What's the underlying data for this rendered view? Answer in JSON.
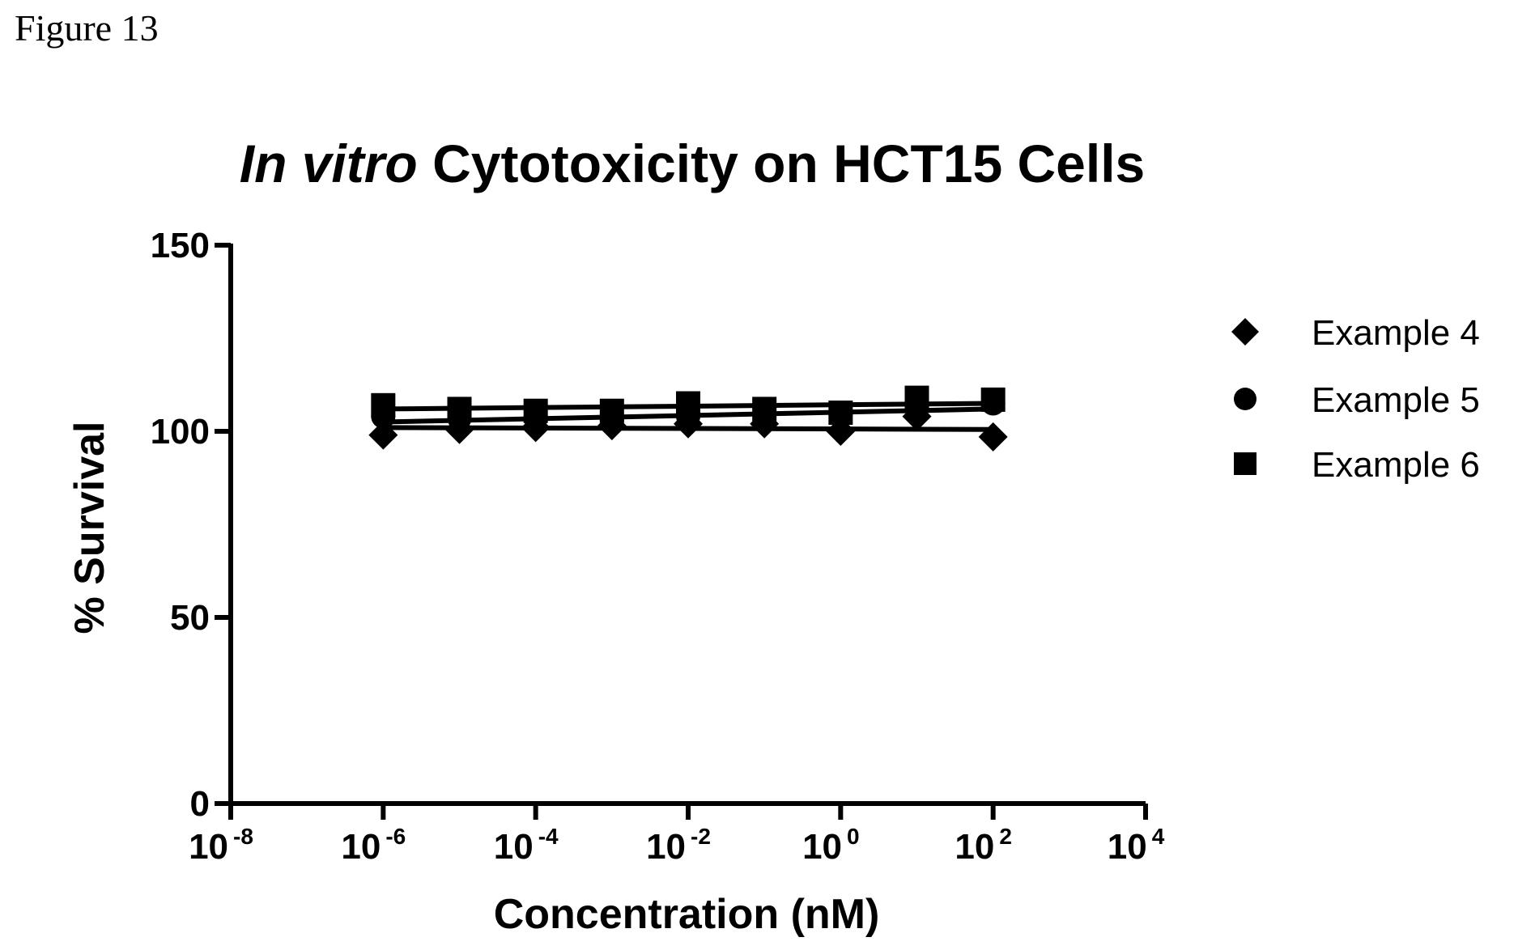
{
  "figure_label": "Figure 13",
  "chart_data": {
    "type": "scatter",
    "title_italic": "In vitro",
    "title_rest": " Cytotoxicity on HCT15 Cells",
    "xlabel": "Concentration (nM)",
    "ylabel": "% Survival",
    "x_scale": "log",
    "xlim": [
      1e-08,
      10000.0
    ],
    "ylim": [
      0,
      150
    ],
    "x_ticks": [
      {
        "base": "10",
        "exp": "-8",
        "value": 1e-08
      },
      {
        "base": "10",
        "exp": "-6",
        "value": 1e-06
      },
      {
        "base": "10",
        "exp": "-4",
        "value": 0.0001
      },
      {
        "base": "10",
        "exp": "-2",
        "value": 0.01
      },
      {
        "base": "10",
        "exp": "0",
        "value": 1
      },
      {
        "base": "10",
        "exp": "2",
        "value": 100
      },
      {
        "base": "10",
        "exp": "4",
        "value": 10000
      }
    ],
    "y_ticks": [
      "0",
      "50",
      "100",
      "150"
    ],
    "grid": false,
    "legend_position": "right",
    "series": [
      {
        "name": "Example 4",
        "marker": "diamond",
        "x": [
          1e-06,
          1e-05,
          0.0001,
          0.001,
          0.01,
          0.1,
          1,
          10,
          100
        ],
        "y": [
          99,
          100.5,
          101,
          101.5,
          102,
          102,
          100,
          104,
          98.5
        ],
        "fit": [
          101,
          100.5
        ]
      },
      {
        "name": "Example 5",
        "marker": "circle",
        "x": [
          1e-06,
          1e-05,
          0.0001,
          0.001,
          0.01,
          0.1,
          1,
          10,
          100
        ],
        "y": [
          104,
          103.5,
          103.5,
          103,
          104,
          104.5,
          104.5,
          106,
          107.5
        ],
        "fit": [
          102.5,
          106
        ]
      },
      {
        "name": "Example 6",
        "marker": "square",
        "x": [
          1e-06,
          1e-05,
          0.0001,
          0.001,
          0.01,
          0.1,
          1,
          10,
          100
        ],
        "y": [
          107,
          106,
          105.5,
          105.5,
          107.5,
          106,
          105,
          109,
          108.5
        ],
        "fit": [
          106,
          107.5
        ]
      }
    ]
  }
}
